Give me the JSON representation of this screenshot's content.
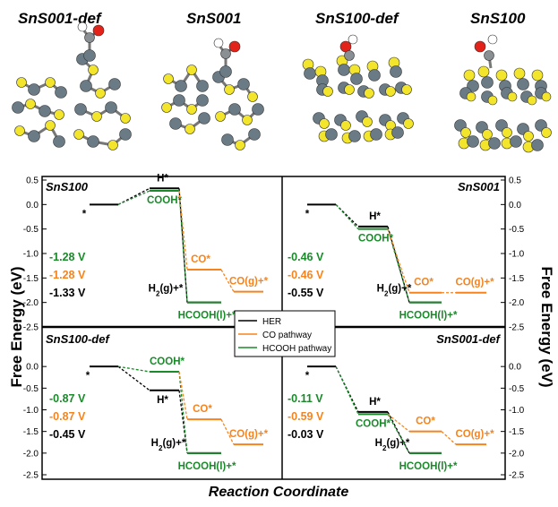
{
  "structures": {
    "labels": [
      "SnS001-def",
      "SnS001",
      "SnS100-def",
      "SnS100"
    ],
    "colors": {
      "sn": "#6b7b86",
      "s": "#f2e52b",
      "o": "#e32219",
      "h": "#ffffff"
    }
  },
  "axes": {
    "ylabel_left": "Free Energy (eV)",
    "ylabel_right": "Free Energy (eV)",
    "xlabel": "Reaction Coordinate"
  },
  "legend": {
    "items": [
      {
        "label": "HER",
        "color": "#000000"
      },
      {
        "label": "CO pathway",
        "color": "#f5841f"
      },
      {
        "label": "HCOOH pathway",
        "color": "#1a8a2a"
      }
    ]
  },
  "colors": {
    "her": "#000000",
    "co": "#f5841f",
    "hcooh": "#1a8a2a"
  },
  "chart_data": [
    {
      "type": "line",
      "title": "SnS100",
      "ylim": [
        -2.5,
        0.5
      ],
      "yticks": [
        "0.5",
        "0.0",
        "-0.5",
        "-1.0",
        "-1.5",
        "-2.0",
        "-2.5"
      ],
      "series": [
        {
          "name": "HER",
          "levels": [
            {
              "step": 0,
              "label": "*",
              "value": 0.0
            },
            {
              "step": 1,
              "label": "H*",
              "value": 0.33
            },
            {
              "step": 2,
              "label": "H2(g)+*",
              "value": -2.0
            }
          ]
        },
        {
          "name": "HCOOH pathway",
          "levels": [
            {
              "step": 0,
              "value": 0.0
            },
            {
              "step": 1,
              "label": "COOH*",
              "value": 0.28
            },
            {
              "step": 2,
              "label": "HCOOH(l)+*",
              "value": -2.0
            }
          ]
        },
        {
          "name": "CO pathway",
          "levels": [
            {
              "step": 1,
              "value": 0.28
            },
            {
              "step": 2,
              "label": "CO*",
              "value": -1.33
            },
            {
              "step": 3,
              "label": "CO(g)+*",
              "value": -1.78
            }
          ]
        }
      ],
      "potentials": [
        "-1.28 V",
        "-1.28 V",
        "-1.33 V"
      ]
    },
    {
      "type": "line",
      "title": "SnS001",
      "ylim": [
        -2.5,
        0.5
      ],
      "yticks": [
        "0.5",
        "0.0",
        "-0.5",
        "-1.0",
        "-1.5",
        "-2.0",
        "-2.5"
      ],
      "series": [
        {
          "name": "HER",
          "levels": [
            {
              "step": 0,
              "label": "*",
              "value": 0.0
            },
            {
              "step": 1,
              "label": "H*",
              "value": -0.45
            },
            {
              "step": 2,
              "label": "H2(g)+*",
              "value": -2.0
            }
          ]
        },
        {
          "name": "HCOOH pathway",
          "levels": [
            {
              "step": 0,
              "value": 0.0
            },
            {
              "step": 1,
              "label": "COOH*",
              "value": -0.5
            },
            {
              "step": 2,
              "label": "HCOOH(l)+*",
              "value": -2.0
            }
          ]
        },
        {
          "name": "CO pathway",
          "levels": [
            {
              "step": 1,
              "value": -0.5
            },
            {
              "step": 2,
              "label": "CO*",
              "value": -1.8
            },
            {
              "step": 3,
              "label": "CO(g)+*",
              "value": -1.8
            }
          ]
        }
      ],
      "potentials": [
        "-0.46 V",
        "-0.46 V",
        "-0.55 V"
      ]
    },
    {
      "type": "line",
      "title": "SnS100-def",
      "ylim": [
        -2.5,
        0.5
      ],
      "yticks": [
        "0.0",
        "-0.5",
        "-1.0",
        "-1.5",
        "-2.0",
        "-2.5"
      ],
      "series": [
        {
          "name": "HER",
          "levels": [
            {
              "step": 0,
              "label": "*",
              "value": 0.0
            },
            {
              "step": 1,
              "label": "H*",
              "value": -0.55
            },
            {
              "step": 2,
              "label": "H2(g)+*",
              "value": -2.0
            }
          ]
        },
        {
          "name": "HCOOH pathway",
          "levels": [
            {
              "step": 0,
              "value": 0.0
            },
            {
              "step": 1,
              "label": "COOH*",
              "value": -0.12
            },
            {
              "step": 2,
              "label": "HCOOH(l)+*",
              "value": -2.0
            }
          ]
        },
        {
          "name": "CO pathway",
          "levels": [
            {
              "step": 1,
              "value": -0.12
            },
            {
              "step": 2,
              "label": "CO*",
              "value": -1.22
            },
            {
              "step": 3,
              "label": "CO(g)+*",
              "value": -1.8
            }
          ]
        }
      ],
      "potentials": [
        "-0.87 V",
        "-0.87 V",
        "-0.45 V"
      ]
    },
    {
      "type": "line",
      "title": "SnS001-def",
      "ylim": [
        -2.5,
        0.5
      ],
      "yticks": [
        "0.0",
        "-0.5",
        "-1.0",
        "-1.5",
        "-2.0",
        "-2.5"
      ],
      "series": [
        {
          "name": "HER",
          "levels": [
            {
              "step": 0,
              "label": "*",
              "value": 0.0
            },
            {
              "step": 1,
              "label": "H*",
              "value": -1.05
            },
            {
              "step": 2,
              "label": "H2(g)+*",
              "value": -2.0
            }
          ]
        },
        {
          "name": "HCOOH pathway",
          "levels": [
            {
              "step": 0,
              "value": 0.0
            },
            {
              "step": 1,
              "label": "COOH*",
              "value": -1.1
            },
            {
              "step": 2,
              "label": "HCOOH(l)+*",
              "value": -2.0
            }
          ]
        },
        {
          "name": "CO pathway",
          "levels": [
            {
              "step": 1,
              "value": -1.1
            },
            {
              "step": 2,
              "label": "CO*",
              "value": -1.5
            },
            {
              "step": 3,
              "label": "CO(g)+*",
              "value": -1.8
            }
          ]
        }
      ],
      "potentials": [
        "-0.11 V",
        "-0.59 V",
        "-0.03 V"
      ]
    }
  ]
}
